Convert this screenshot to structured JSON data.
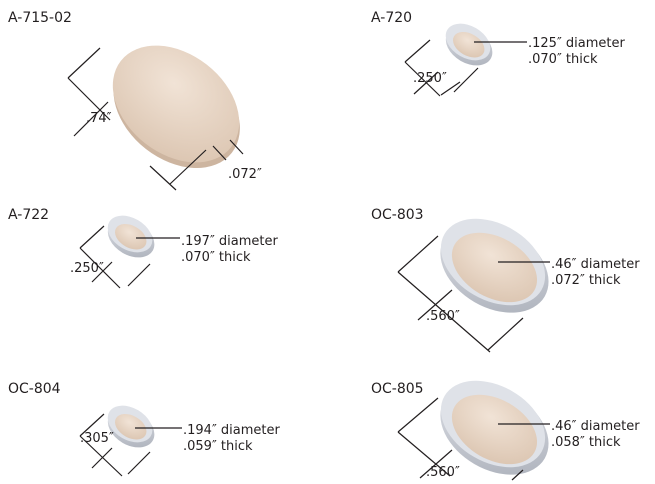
{
  "colors": {
    "disc_face": "#ead8c8",
    "disc_shade": "#d8c1ad",
    "rim_metal": "#c7cad3",
    "rim_dark": "#9ea3ad",
    "line": "#231f20"
  },
  "parts": [
    {
      "id": "A-715-02",
      "dims": [
        ".74″",
        ".072″"
      ]
    },
    {
      "id": "A-720",
      "dims": [
        ".250″"
      ],
      "notes": [
        ".125″ diameter",
        ".070″ thick"
      ]
    },
    {
      "id": "A-722",
      "dims": [
        ".250″"
      ],
      "notes": [
        ".197″ diameter",
        ".070″ thick"
      ]
    },
    {
      "id": "OC-803",
      "dims": [
        ".560″"
      ],
      "notes": [
        ".46″ diameter",
        ".072″ thick"
      ]
    },
    {
      "id": "OC-804",
      "dims": [
        ".305″"
      ],
      "notes": [
        ".194″ diameter",
        ".059″ thick"
      ]
    },
    {
      "id": "OC-805",
      "dims": [
        ".560″"
      ],
      "notes": [
        ".46″ diameter",
        ".058″ thick"
      ]
    }
  ]
}
